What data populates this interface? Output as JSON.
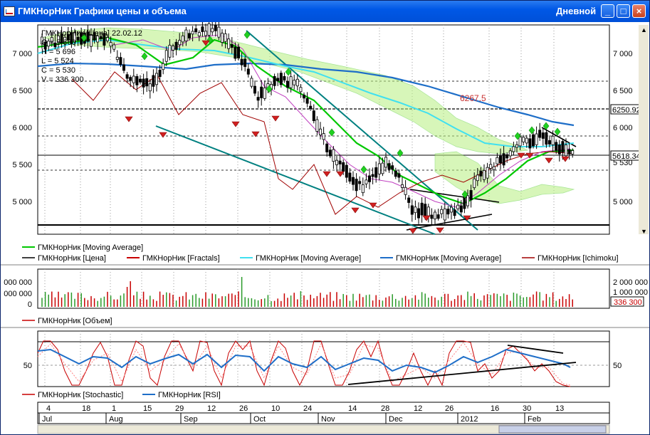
{
  "window": {
    "title": "ГМКНорНик Графики цены и объема",
    "mode": "Дневной",
    "buttons": {
      "minimize": "_",
      "maximize": "□",
      "close": "×"
    }
  },
  "infobox": {
    "header": "ГМКНорНик [Цена] 22.02.12",
    "o": "O = 5 660",
    "h": "H = 5 696",
    "l": "L = 5 524",
    "c": "C = 5 530",
    "v": "V = 336 300"
  },
  "price_panel": {
    "y_ticks": [
      "7 000",
      "6 500",
      "6 000",
      "5 500",
      "5 000"
    ],
    "annotation": "6267.5",
    "right_labels": {
      "level": "6250.92",
      "last": "5618.34",
      "close": "5 530"
    },
    "legend": [
      {
        "label": "ГМКНорНик [Moving Average]",
        "color": "#00c800"
      },
      {
        "label": "ГМКНорНик [Цена]",
        "color": "#000000"
      },
      {
        "label": "ГМКНорНик [Fractals]",
        "color": "#c80000"
      },
      {
        "label": "ГМКНорНик [Moving Average]",
        "color": "#40e0f0"
      },
      {
        "label": "ГМКНорНик [Moving Average]",
        "color": "#1e6ec8"
      },
      {
        "label": "ГМКНорНик [Ichimoku]",
        "color": "#a00000"
      }
    ]
  },
  "volume_panel": {
    "y_ticks_left": [
      "000 000",
      "000 000",
      "0"
    ],
    "y_ticks_right": [
      "2 000 000",
      "1 000 000"
    ],
    "last_value": "336 300",
    "legend": [
      {
        "label": "ГМКНорНик [Объем]",
        "color": "#c80000"
      }
    ]
  },
  "osc_panel": {
    "y_tick": "50",
    "legend": [
      {
        "label": "ГМКНорНик [Stochastic]",
        "color": "#c80000"
      },
      {
        "label": "ГМКНорНик [RSI]",
        "color": "#1e6ec8"
      }
    ]
  },
  "time_axis": {
    "days": [
      "4",
      "18",
      "1",
      "15",
      "29",
      "12",
      "26",
      "10",
      "24",
      "14",
      "28",
      "12",
      "26",
      "16",
      "30",
      "13"
    ],
    "months": [
      "Jul",
      "Aug",
      "Sep",
      "Oct",
      "Nov",
      "Dec",
      "2012",
      "Feb"
    ]
  },
  "colors": {
    "title_bar": "#0058e6",
    "ma_green": "#00c800",
    "ma_cyan": "#40e0f0",
    "ma_blue": "#1e6ec8",
    "fractals": "#c80000",
    "trend_teal": "#008080",
    "cloud": "#a0f060"
  }
}
